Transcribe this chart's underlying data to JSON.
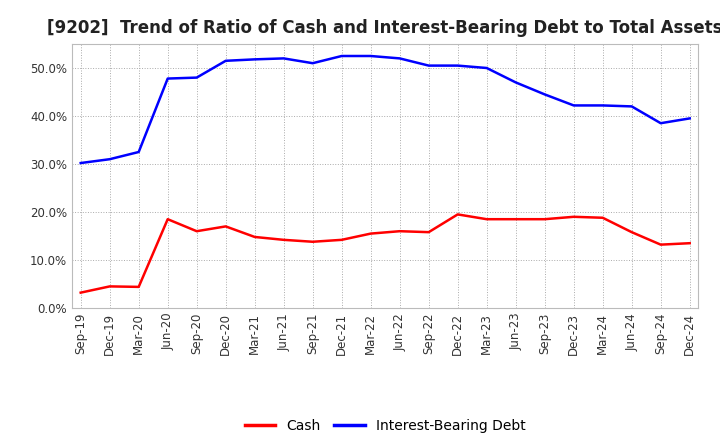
{
  "title": "[9202]  Trend of Ratio of Cash and Interest-Bearing Debt to Total Assets",
  "x_labels": [
    "Sep-19",
    "Dec-19",
    "Mar-20",
    "Jun-20",
    "Sep-20",
    "Dec-20",
    "Mar-21",
    "Jun-21",
    "Sep-21",
    "Dec-21",
    "Mar-22",
    "Jun-22",
    "Sep-22",
    "Dec-22",
    "Mar-23",
    "Jun-23",
    "Sep-23",
    "Dec-23",
    "Mar-24",
    "Jun-24",
    "Sep-24",
    "Dec-24"
  ],
  "cash": [
    3.2,
    4.5,
    4.4,
    18.5,
    16.0,
    17.0,
    14.8,
    14.2,
    13.8,
    14.2,
    15.5,
    16.0,
    15.8,
    19.5,
    18.5,
    18.5,
    18.5,
    19.0,
    18.8,
    15.8,
    13.2,
    13.5
  ],
  "interest_bearing_debt": [
    30.2,
    31.0,
    32.5,
    47.8,
    48.0,
    51.5,
    51.8,
    52.0,
    51.0,
    52.5,
    52.5,
    52.0,
    50.5,
    50.5,
    50.0,
    47.0,
    44.5,
    42.2,
    42.2,
    42.0,
    38.5,
    39.5
  ],
  "cash_color": "#ff0000",
  "debt_color": "#0000ff",
  "background_color": "#ffffff",
  "grid_color": "#aaaaaa",
  "ylim": [
    0,
    55
  ],
  "yticks": [
    0,
    10,
    20,
    30,
    40,
    50
  ],
  "legend_cash": "Cash",
  "legend_debt": "Interest-Bearing Debt",
  "title_fontsize": 12,
  "axis_fontsize": 8.5,
  "legend_fontsize": 10
}
